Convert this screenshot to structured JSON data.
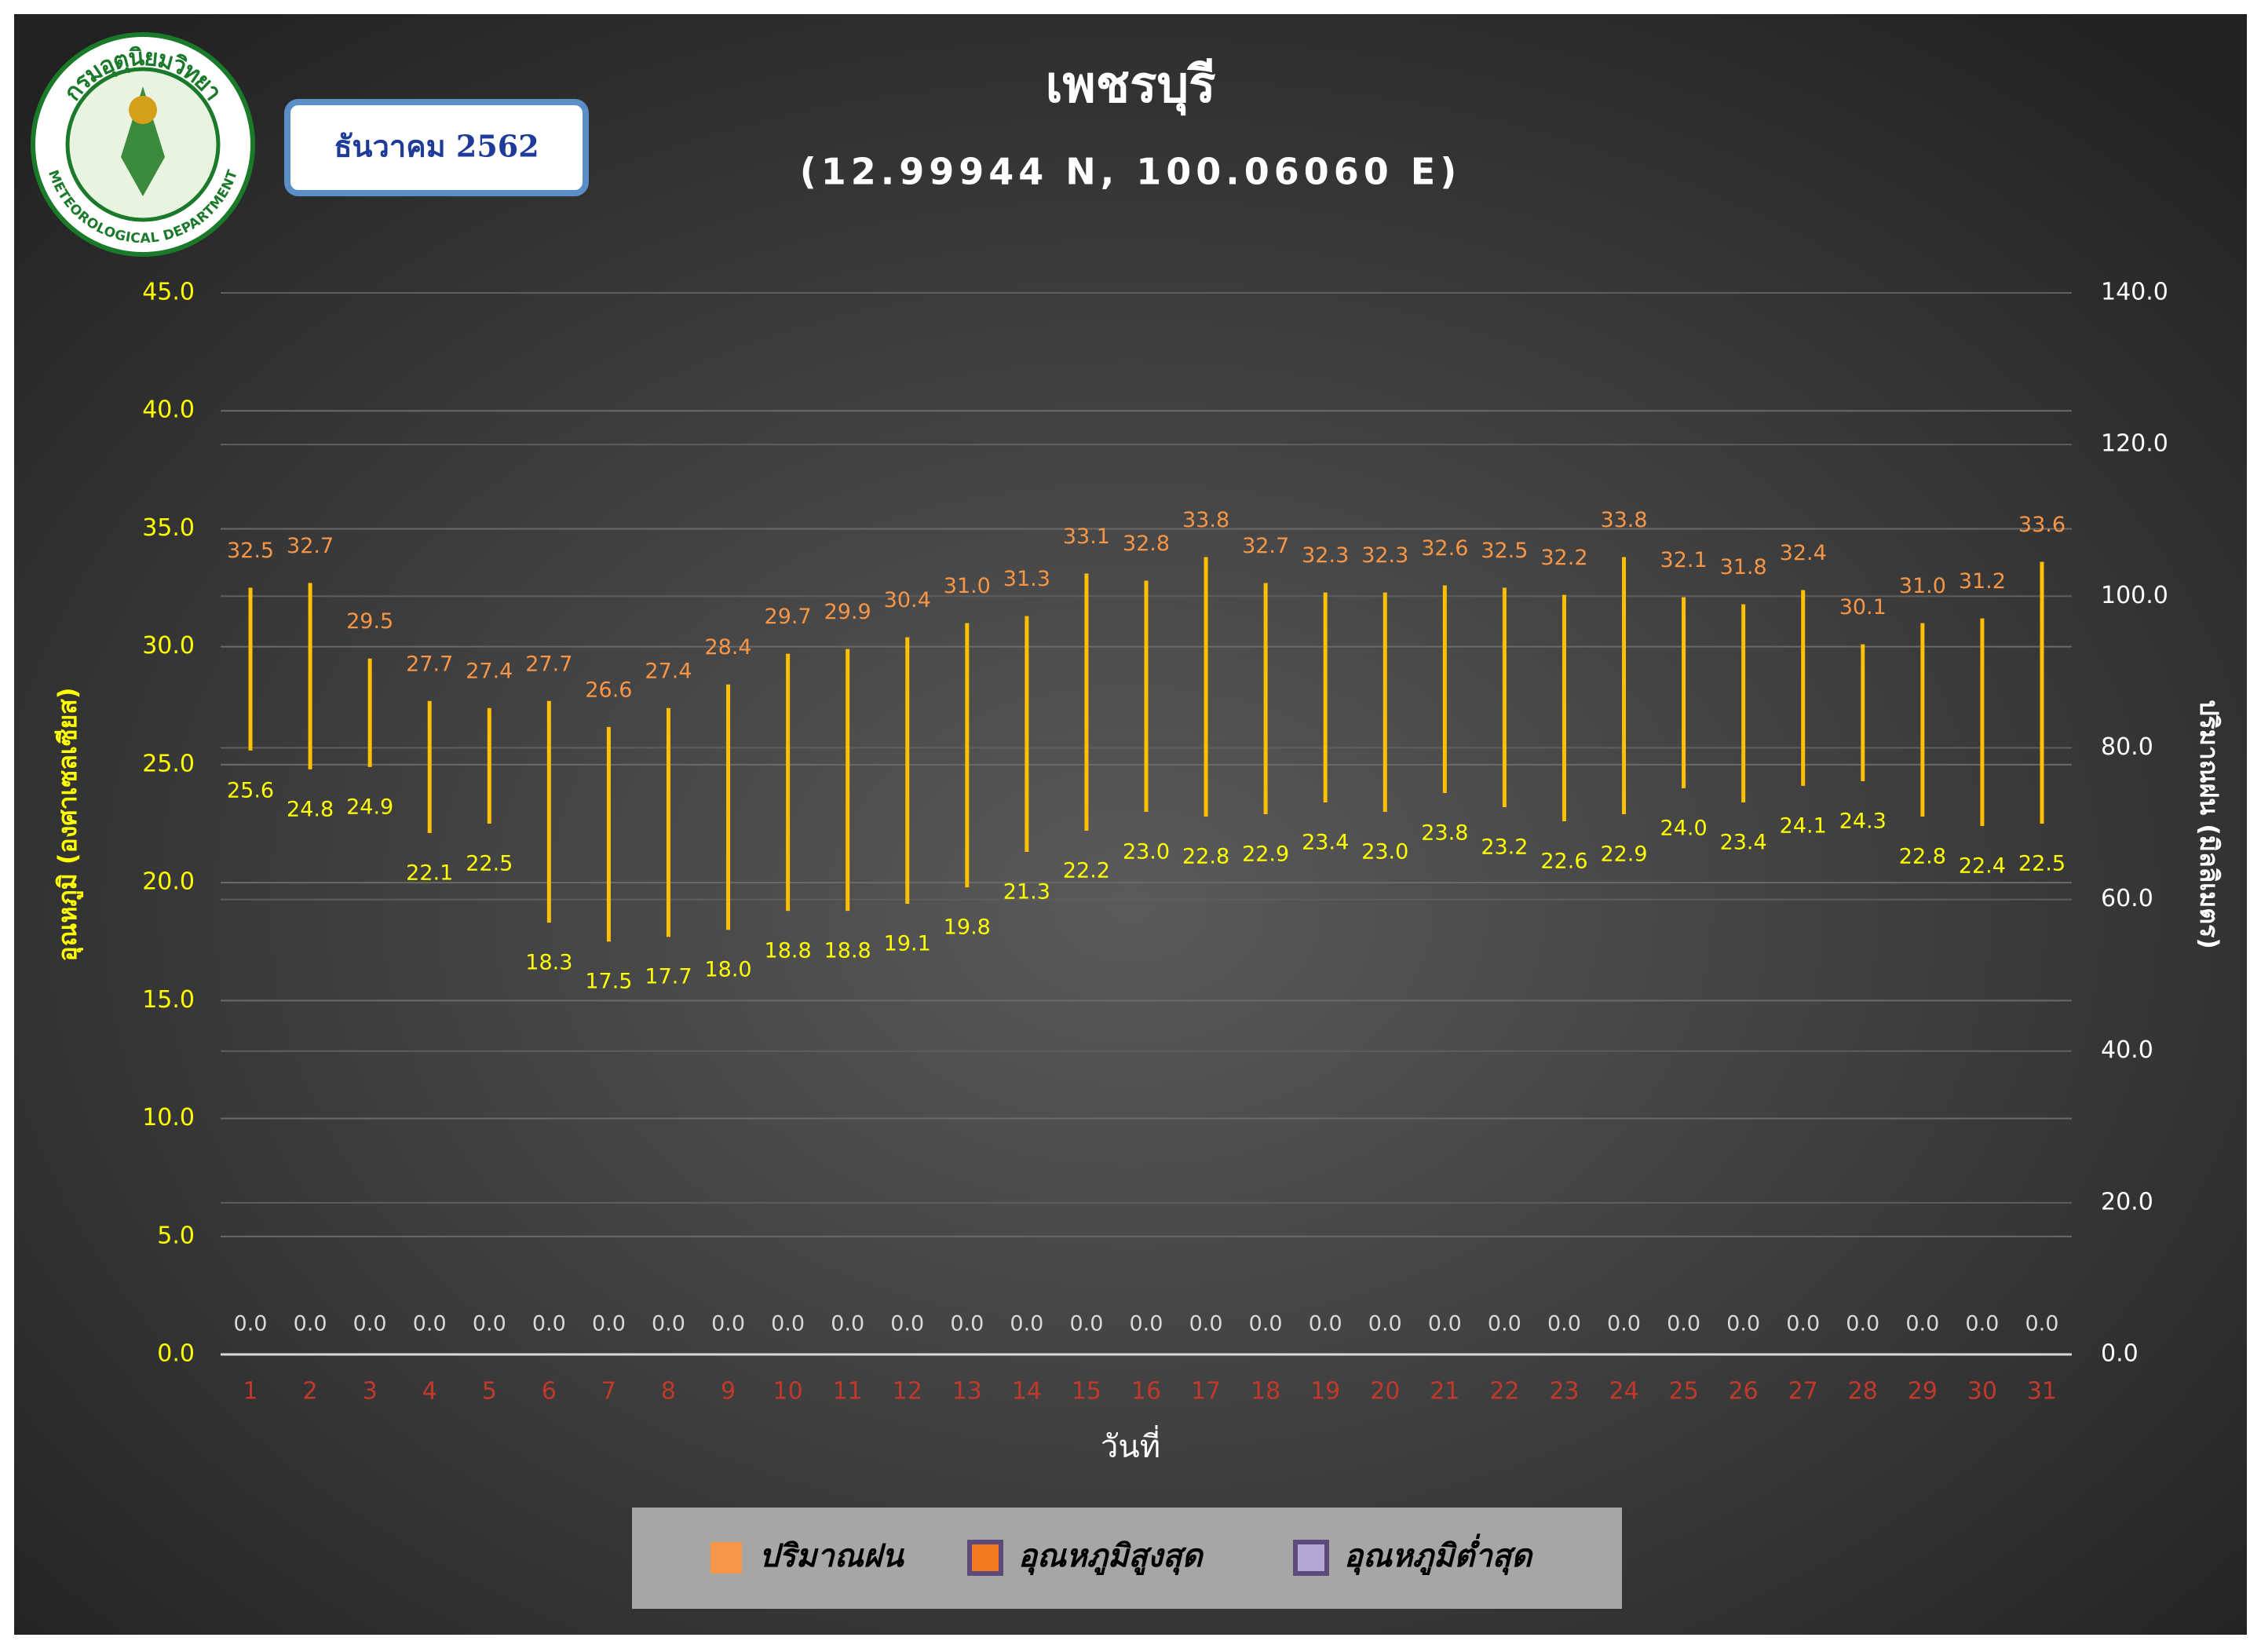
{
  "logo": {
    "top_text": "กรมอุตุนิยมวิทยา",
    "bottom_text": "METEOROLOGICAL DEPARTMENT"
  },
  "date_badge": "ธันวาคม 2562",
  "chart_data": {
    "type": "range-bar",
    "title": "เพชรบุรี",
    "subtitle": "(12.99944 N, 100.06060 E)",
    "x_label": "วันที่",
    "y_label": "อุณหภูมิ (องศาเซลเซียส)",
    "y2_label": "ปริมาณฝน (มิลลิเมตร)",
    "categories": [
      "1",
      "2",
      "3",
      "4",
      "5",
      "6",
      "7",
      "8",
      "9",
      "10",
      "11",
      "12",
      "13",
      "14",
      "15",
      "16",
      "17",
      "18",
      "19",
      "20",
      "21",
      "22",
      "23",
      "24",
      "25",
      "26",
      "27",
      "28",
      "29",
      "30",
      "31"
    ],
    "range_color": "#ffc000",
    "grid": true,
    "legend": "bottom",
    "series": [
      {
        "name": "ปริมาณฝน",
        "color": "#f79646",
        "label_color": "#d9d9d9",
        "axis": "y2",
        "values": [
          0,
          0,
          0,
          0,
          0,
          0,
          0,
          0,
          0,
          0,
          0,
          0,
          0,
          0,
          0,
          0,
          0,
          0,
          0,
          0,
          0,
          0,
          0,
          0,
          0,
          0,
          0,
          0,
          0,
          0,
          0
        ],
        "value_labels": [
          "0.0",
          "0.0",
          "0.0",
          "0.0",
          "0.0",
          "0.0",
          "0.0",
          "0.0",
          "0.0",
          "0.0",
          "0.0",
          "0.0",
          "0.0",
          "0.0",
          "0.0",
          "0.0",
          "0.0",
          "0.0",
          "0.0",
          "0.0",
          "0.0",
          "0.0",
          "0.0",
          "0.0",
          "0.0",
          "0.0",
          "0.0",
          "0.0",
          "0.0",
          "0.0",
          "0.0"
        ]
      },
      {
        "name": "อุณหภูมิสูงสุด",
        "color": "#f47920",
        "label_color": "#f79646",
        "values": [
          32.5,
          32.7,
          29.5,
          27.7,
          27.4,
          27.7,
          26.6,
          27.4,
          28.4,
          29.7,
          29.9,
          30.4,
          31.0,
          31.3,
          33.1,
          32.8,
          33.8,
          32.7,
          32.3,
          32.3,
          32.6,
          32.5,
          32.2,
          33.8,
          32.1,
          31.8,
          32.4,
          30.1,
          31.0,
          31.2,
          33.6
        ],
        "value_labels": [
          "32.5",
          "32.7",
          "29.5",
          "27.7",
          "27.4",
          "27.7",
          "26.6",
          "27.4",
          "28.4",
          "29.7",
          "29.9",
          "30.4",
          "31.0",
          "31.3",
          "33.1",
          "32.8",
          "33.8",
          "32.7",
          "32.3",
          "32.3",
          "32.6",
          "32.5",
          "32.2",
          "33.8",
          "32.1",
          "31.8",
          "32.4",
          "30.1",
          "31.0",
          "31.2",
          "33.6"
        ]
      },
      {
        "name": "อุณหภูมิต่ำสุด",
        "color": "#b4a7d6",
        "label_color": "#ffff00",
        "values": [
          25.6,
          24.8,
          24.9,
          22.1,
          22.5,
          18.3,
          17.5,
          17.7,
          18.0,
          18.8,
          18.8,
          19.1,
          19.8,
          21.3,
          22.2,
          23.0,
          22.8,
          22.9,
          23.4,
          23.0,
          23.8,
          23.2,
          22.6,
          22.9,
          24.0,
          23.4,
          24.1,
          24.3,
          22.8,
          22.4,
          22.5
        ],
        "value_labels": [
          "25.6",
          "24.8",
          "24.9",
          "22.1",
          "22.5",
          "18.3",
          "17.5",
          "17.7",
          "18.0",
          "18.8",
          "18.8",
          "19.1",
          "19.8",
          "21.3",
          "22.2",
          "23.0",
          "22.8",
          "22.9",
          "23.4",
          "23.0",
          "23.8",
          "23.2",
          "22.6",
          "22.9",
          "24.0",
          "23.4",
          "24.1",
          "24.3",
          "22.8",
          "22.4",
          "22.5"
        ]
      }
    ],
    "ylim": [
      0,
      45
    ],
    "yticks": [
      {
        "value": 0,
        "label": "0.0"
      },
      {
        "value": 5,
        "label": "5.0"
      },
      {
        "value": 10,
        "label": "10.0"
      },
      {
        "value": 15,
        "label": "15.0"
      },
      {
        "value": 20,
        "label": "20.0"
      },
      {
        "value": 25,
        "label": "25.0"
      },
      {
        "value": 30,
        "label": "30.0"
      },
      {
        "value": 35,
        "label": "35.0"
      },
      {
        "value": 40,
        "label": "40.0"
      },
      {
        "value": 45,
        "label": "45.0"
      }
    ],
    "y2lim": [
      0,
      140
    ],
    "y2ticks": [
      {
        "value": 0,
        "label": "0.0"
      },
      {
        "value": 20,
        "label": "20.0"
      },
      {
        "value": 40,
        "label": "40.0"
      },
      {
        "value": 60,
        "label": "60.0"
      },
      {
        "value": 80,
        "label": "80.0"
      },
      {
        "value": 100,
        "label": "100.0"
      },
      {
        "value": 120,
        "label": "120.0"
      },
      {
        "value": 140,
        "label": "140.0"
      }
    ]
  }
}
